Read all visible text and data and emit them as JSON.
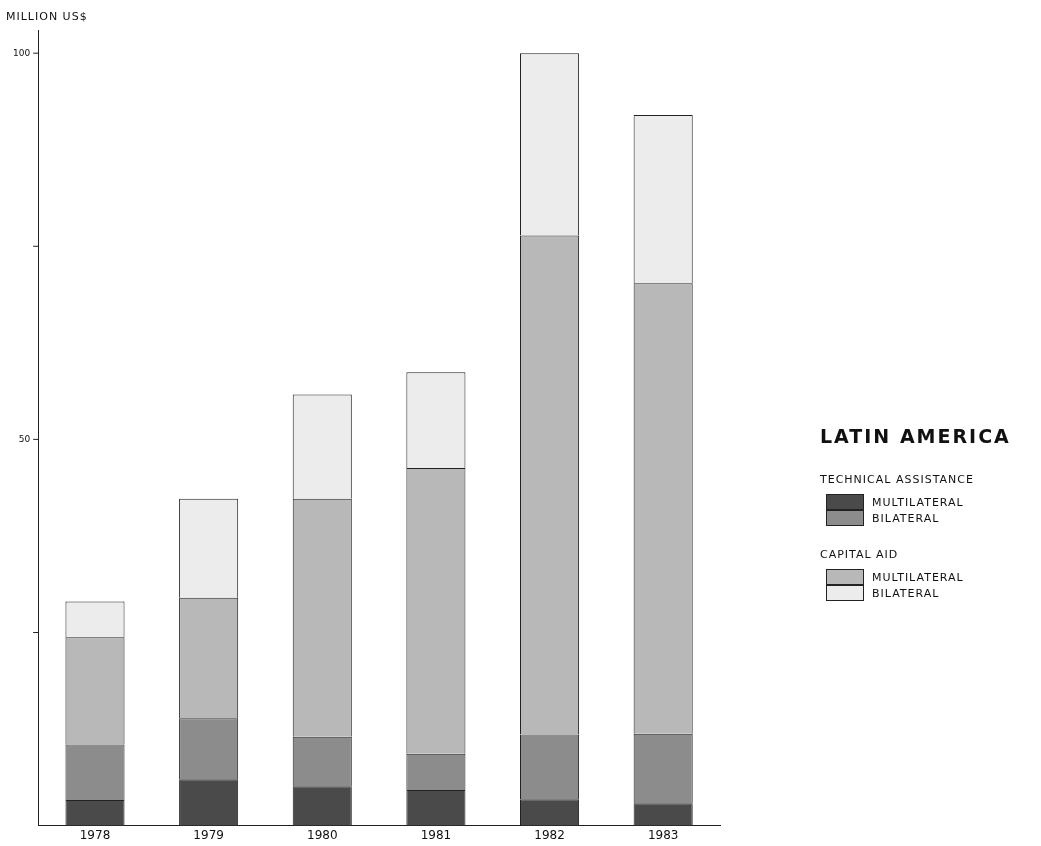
{
  "chart_data": {
    "type": "bar",
    "title": "LATIN AMERICA",
    "ylabel": "MILLION US$",
    "categories": [
      "1978",
      "1979",
      "1980",
      "1981",
      "1982",
      "1983"
    ],
    "stacked": true,
    "series": [
      {
        "name": "MULTILATERAL",
        "color": "#4a4a4a",
        "values": [
          3.3,
          6.0,
          5.1,
          4.6,
          3.4,
          2.9
        ]
      },
      {
        "name": "BILATERAL",
        "color": "#8c8c8c",
        "values": [
          7.2,
          7.9,
          6.4,
          4.7,
          8.4,
          9.0
        ]
      },
      {
        "name": "MULTILATERAL",
        "color": "#b8b8b8",
        "values": [
          13.9,
          15.6,
          30.8,
          37.0,
          64.6,
          58.3
        ]
      },
      {
        "name": "BILATERAL",
        "color": "#ececec",
        "values": [
          4.6,
          12.8,
          13.5,
          12.4,
          23.6,
          21.8
        ]
      }
    ],
    "annotations": [
      "TECHNICAL ASSISTANCE",
      "CAPITAL AID"
    ],
    "ylim": [
      0,
      103
    ],
    "yticks": [
      {
        "value": 25,
        "label": null
      },
      50,
      {
        "value": 75,
        "label": null
      },
      100
    ],
    "grid": false,
    "legend": "right"
  }
}
